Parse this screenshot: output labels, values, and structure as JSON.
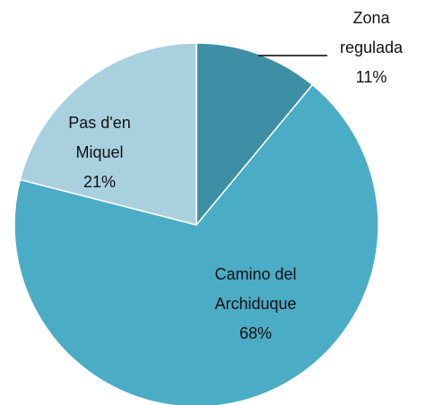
{
  "chart_data": {
    "type": "pie",
    "categories": [
      "Zona regulada",
      "Camino del Archiduque",
      "Pas d'en Miquel"
    ],
    "values": [
      11,
      68,
      21
    ],
    "value_labels": [
      "11%",
      "68%",
      "21%"
    ],
    "colors": [
      "#3e8fa6",
      "#4bacc6",
      "#a9d0df"
    ]
  }
}
